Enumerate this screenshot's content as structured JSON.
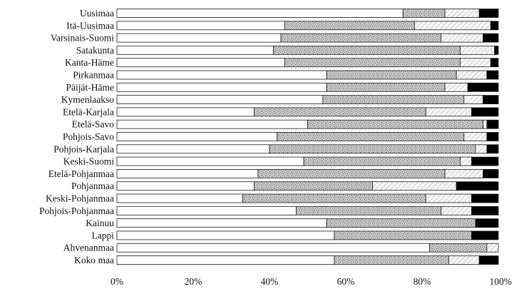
{
  "chart_data": {
    "type": "bar",
    "orientation": "horizontal",
    "stacked": true,
    "percent_stacked": true,
    "categories": [
      "Uusimaa",
      "Itä-Uusimaa",
      "Varsinais-Suomi",
      "Satakunta",
      "Kanta-Häme",
      "Pirkanmaa",
      "Päijät-Häme",
      "Kymenlaakso",
      "Etelä-Karjala",
      "Etelä-Savo",
      "Pohjois-Savo",
      "Pohjois-Karjala",
      "Keski-Suomi",
      "Etelä-Pohjanmaa",
      "Pohjanmaa",
      "Keski-Pohjanmaa",
      "Pohjois-Pohjanmaa",
      "Kainuu",
      "Lappi",
      "Ahvenanmaa",
      "Koko maa"
    ],
    "series": [
      {
        "values": [
          75,
          44,
          43,
          41,
          44,
          55,
          55,
          54,
          36,
          50,
          42,
          40,
          49,
          37,
          36,
          33,
          47,
          55,
          57,
          82,
          57
        ]
      },
      {
        "values": [
          11,
          34,
          42,
          49,
          46,
          34,
          31,
          37,
          45,
          46,
          49,
          54,
          41,
          49,
          31,
          48,
          38,
          39,
          36,
          15,
          30
        ]
      },
      {
        "values": [
          9,
          20,
          11,
          9,
          8,
          8,
          6,
          5,
          12,
          1,
          6,
          3,
          3,
          10,
          22,
          12,
          8,
          0,
          0,
          3,
          8
        ]
      },
      {
        "values": [
          5,
          2,
          4,
          1,
          2,
          3,
          8,
          4,
          7,
          3,
          3,
          3,
          7,
          4,
          11,
          7,
          7,
          6,
          7,
          0,
          5
        ]
      }
    ],
    "series_styles": [
      {
        "fill": "#ffffff",
        "pattern": "none"
      },
      {
        "fill": "#c9c9c9",
        "pattern": "speckle-dense"
      },
      {
        "fill": "#f4f4f4",
        "pattern": "diagonal-hatch"
      },
      {
        "fill": "#000000",
        "pattern": "none"
      }
    ],
    "xticks": [
      "0%",
      "20%",
      "40%",
      "60%",
      "80%",
      "100%"
    ],
    "xlim": [
      0,
      100
    ],
    "title": "",
    "xlabel": "",
    "ylabel": "",
    "grid": false,
    "legend": "none"
  }
}
